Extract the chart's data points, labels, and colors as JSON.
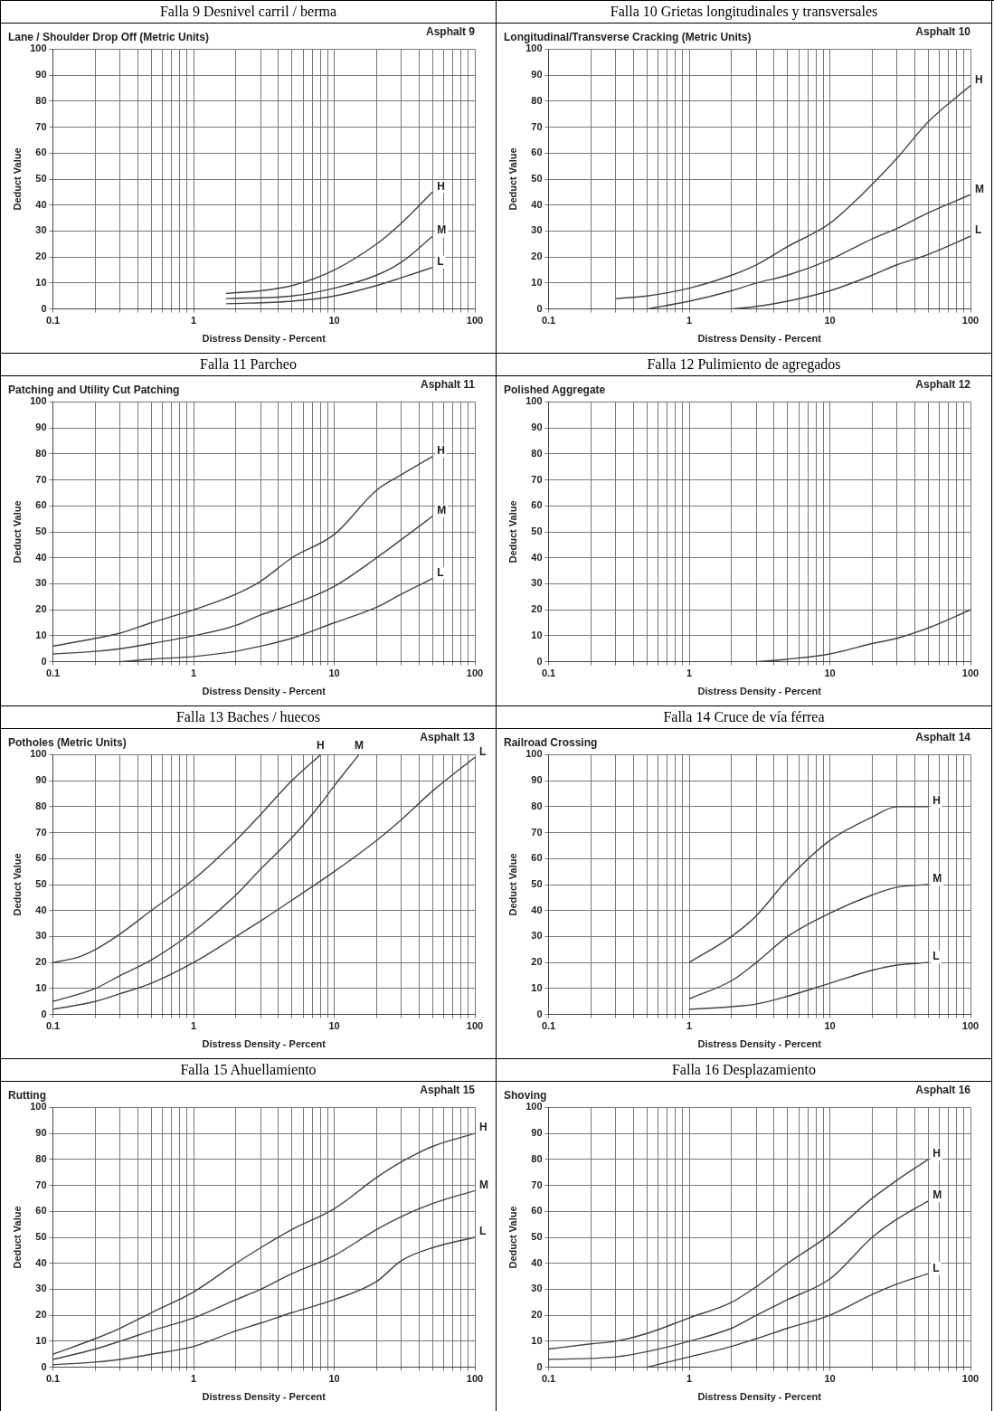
{
  "chart_data": [
    {
      "type": "line",
      "title": "Falla 9 Desnivel carril / berma",
      "subtitle": "Lane / Shoulder Drop Off (Metric Units)",
      "annotations": [
        "Asphalt 9"
      ],
      "xlabel": "Distress Density - Percent",
      "ylabel": "Deduct Value",
      "log": "x",
      "xlim": [
        0.1,
        100
      ],
      "xticks": [
        0.1,
        {
          "value": 0.2,
          "label": null
        },
        {
          "value": 0.3,
          "label": null
        },
        {
          "value": 0.4,
          "label": null
        },
        {
          "value": 0.5,
          "label": null
        },
        {
          "value": 0.6,
          "label": null
        },
        {
          "value": 0.7,
          "label": null
        },
        {
          "value": 0.8,
          "label": null
        },
        {
          "value": 0.9,
          "label": null
        },
        1,
        {
          "value": 2,
          "label": null
        },
        {
          "value": 3,
          "label": null
        },
        {
          "value": 4,
          "label": null
        },
        {
          "value": 5,
          "label": null
        },
        {
          "value": 6,
          "label": null
        },
        {
          "value": 7,
          "label": null
        },
        {
          "value": 8,
          "label": null
        },
        {
          "value": 9,
          "label": null
        },
        10,
        {
          "value": 20,
          "label": null
        },
        {
          "value": 30,
          "label": null
        },
        {
          "value": 40,
          "label": null
        },
        {
          "value": 50,
          "label": null
        },
        {
          "value": 60,
          "label": null
        },
        {
          "value": 70,
          "label": null
        },
        {
          "value": 80,
          "label": null
        },
        {
          "value": 90,
          "label": null
        },
        100
      ],
      "ylim": [
        0,
        100
      ],
      "yticks": [
        0,
        10,
        20,
        30,
        40,
        50,
        60,
        70,
        80,
        90,
        100
      ],
      "grid": true,
      "marker": "none",
      "series": [
        {
          "name": "H",
          "color": "#444444",
          "x": [
            1.7,
            3,
            5,
            10,
            20,
            30,
            50
          ],
          "values": [
            6,
            7,
            9,
            15,
            25,
            33,
            45
          ]
        },
        {
          "name": "M",
          "color": "#444444",
          "x": [
            1.7,
            5,
            10,
            20,
            30,
            50
          ],
          "values": [
            4,
            5,
            8,
            13,
            18,
            28
          ]
        },
        {
          "name": "L",
          "color": "#444444",
          "x": [
            1.7,
            5,
            10,
            20,
            30,
            50
          ],
          "values": [
            2,
            3,
            5,
            9,
            12,
            16
          ]
        }
      ]
    },
    {
      "type": "line",
      "title": "Falla 10 Grietas longitudinales y transversales",
      "subtitle": "Longitudinal/Transverse Cracking (Metric Units)",
      "annotations": [
        "Asphalt 10"
      ],
      "xlabel": "Distress Density - Percent",
      "ylabel": "Deduct Value",
      "log": "x",
      "xlim": [
        0.1,
        100
      ],
      "xticks": [
        0.1,
        {
          "value": 0.2,
          "label": null
        },
        {
          "value": 0.3,
          "label": null
        },
        {
          "value": 0.4,
          "label": null
        },
        {
          "value": 0.5,
          "label": null
        },
        {
          "value": 0.6,
          "label": null
        },
        {
          "value": 0.7,
          "label": null
        },
        {
          "value": 0.8,
          "label": null
        },
        {
          "value": 0.9,
          "label": null
        },
        1,
        {
          "value": 2,
          "label": null
        },
        {
          "value": 3,
          "label": null
        },
        {
          "value": 4,
          "label": null
        },
        {
          "value": 5,
          "label": null
        },
        {
          "value": 6,
          "label": null
        },
        {
          "value": 7,
          "label": null
        },
        {
          "value": 8,
          "label": null
        },
        {
          "value": 9,
          "label": null
        },
        10,
        {
          "value": 20,
          "label": null
        },
        {
          "value": 30,
          "label": null
        },
        {
          "value": 40,
          "label": null
        },
        {
          "value": 50,
          "label": null
        },
        {
          "value": 60,
          "label": null
        },
        {
          "value": 70,
          "label": null
        },
        {
          "value": 80,
          "label": null
        },
        {
          "value": 90,
          "label": null
        },
        100
      ],
      "ylim": [
        0,
        100
      ],
      "yticks": [
        0,
        10,
        20,
        30,
        40,
        50,
        60,
        70,
        80,
        90,
        100
      ],
      "grid": true,
      "marker": "none",
      "series": [
        {
          "name": "H",
          "color": "#444444",
          "x": [
            0.3,
            0.5,
            1,
            2,
            3,
            5,
            10,
            20,
            30,
            50,
            100
          ],
          "values": [
            4,
            5,
            8,
            13,
            17,
            24,
            33,
            48,
            58,
            72,
            86
          ]
        },
        {
          "name": "M",
          "color": "#444444",
          "x": [
            0.5,
            1,
            2,
            3,
            5,
            10,
            20,
            30,
            50,
            100
          ],
          "values": [
            0,
            3,
            7,
            10,
            13,
            19,
            27,
            31,
            37,
            44
          ]
        },
        {
          "name": "L",
          "color": "#444444",
          "x": [
            2,
            3,
            5,
            10,
            20,
            30,
            50,
            100
          ],
          "values": [
            0,
            1,
            3,
            7,
            13,
            17,
            21,
            28
          ]
        }
      ]
    },
    {
      "type": "line",
      "title": "Falla 11 Parcheo",
      "subtitle": "Patching and Utility Cut Patching",
      "annotations": [
        "Asphalt 11"
      ],
      "xlabel": "Distress Density - Percent",
      "ylabel": "Deduct Value",
      "log": "x",
      "xlim": [
        0.1,
        100
      ],
      "xticks": [
        0.1,
        {
          "value": 0.2,
          "label": null
        },
        {
          "value": 0.3,
          "label": null
        },
        {
          "value": 0.4,
          "label": null
        },
        {
          "value": 0.5,
          "label": null
        },
        {
          "value": 0.6,
          "label": null
        },
        {
          "value": 0.7,
          "label": null
        },
        {
          "value": 0.8,
          "label": null
        },
        {
          "value": 0.9,
          "label": null
        },
        1,
        {
          "value": 2,
          "label": null
        },
        {
          "value": 3,
          "label": null
        },
        {
          "value": 4,
          "label": null
        },
        {
          "value": 5,
          "label": null
        },
        {
          "value": 6,
          "label": null
        },
        {
          "value": 7,
          "label": null
        },
        {
          "value": 8,
          "label": null
        },
        {
          "value": 9,
          "label": null
        },
        10,
        {
          "value": 20,
          "label": null
        },
        {
          "value": 30,
          "label": null
        },
        {
          "value": 40,
          "label": null
        },
        {
          "value": 50,
          "label": null
        },
        {
          "value": 60,
          "label": null
        },
        {
          "value": 70,
          "label": null
        },
        {
          "value": 80,
          "label": null
        },
        {
          "value": 90,
          "label": null
        },
        100
      ],
      "ylim": [
        0,
        100
      ],
      "yticks": [
        0,
        10,
        20,
        30,
        40,
        50,
        60,
        70,
        80,
        90,
        100
      ],
      "grid": true,
      "marker": "none",
      "series": [
        {
          "name": "H",
          "color": "#444444",
          "x": [
            0.1,
            0.2,
            0.3,
            0.5,
            1,
            2,
            3,
            5,
            10,
            20,
            30,
            50
          ],
          "values": [
            6,
            9,
            11,
            15,
            20,
            26,
            31,
            40,
            49,
            66,
            72,
            79
          ]
        },
        {
          "name": "M",
          "color": "#444444",
          "x": [
            0.1,
            0.2,
            0.3,
            0.5,
            1,
            2,
            3,
            5,
            10,
            20,
            30,
            50
          ],
          "values": [
            3,
            4,
            5,
            7,
            10,
            14,
            18,
            22,
            29,
            40,
            47,
            56
          ]
        },
        {
          "name": "L",
          "color": "#444444",
          "x": [
            0.3,
            0.5,
            1,
            2,
            3,
            5,
            10,
            20,
            30,
            50
          ],
          "values": [
            0,
            1,
            2,
            4,
            6,
            9,
            15,
            21,
            26,
            32
          ]
        }
      ]
    },
    {
      "type": "line",
      "title": "Falla 12 Pulimiento de agregados",
      "subtitle": "Polished Aggregate",
      "annotations": [
        "Asphalt 12"
      ],
      "xlabel": "Distress Density - Percent",
      "ylabel": "Deduct Value",
      "log": "x",
      "xlim": [
        0.1,
        100
      ],
      "xticks": [
        0.1,
        {
          "value": 0.2,
          "label": null
        },
        {
          "value": 0.3,
          "label": null
        },
        {
          "value": 0.4,
          "label": null
        },
        {
          "value": 0.5,
          "label": null
        },
        {
          "value": 0.6,
          "label": null
        },
        {
          "value": 0.7,
          "label": null
        },
        {
          "value": 0.8,
          "label": null
        },
        {
          "value": 0.9,
          "label": null
        },
        1,
        {
          "value": 2,
          "label": null
        },
        {
          "value": 3,
          "label": null
        },
        {
          "value": 4,
          "label": null
        },
        {
          "value": 5,
          "label": null
        },
        {
          "value": 6,
          "label": null
        },
        {
          "value": 7,
          "label": null
        },
        {
          "value": 8,
          "label": null
        },
        {
          "value": 9,
          "label": null
        },
        10,
        {
          "value": 20,
          "label": null
        },
        {
          "value": 30,
          "label": null
        },
        {
          "value": 40,
          "label": null
        },
        {
          "value": 50,
          "label": null
        },
        {
          "value": 60,
          "label": null
        },
        {
          "value": 70,
          "label": null
        },
        {
          "value": 80,
          "label": null
        },
        {
          "value": 90,
          "label": null
        },
        100
      ],
      "ylim": [
        0,
        100
      ],
      "yticks": [
        0,
        10,
        20,
        30,
        40,
        50,
        60,
        70,
        80,
        90,
        100
      ],
      "grid": true,
      "marker": "none",
      "series": [
        {
          "color": "#444444",
          "x": [
            3,
            5,
            10,
            20,
            30,
            50,
            100
          ],
          "values": [
            0,
            1,
            3,
            7,
            9,
            13,
            20
          ]
        }
      ]
    },
    {
      "type": "line",
      "title": "Falla 13 Baches / huecos",
      "subtitle": "Potholes (Metric Units)",
      "annotations": [
        "Asphalt 13"
      ],
      "xlabel": "Distress Density - Percent",
      "ylabel": "Deduct Value",
      "log": "x",
      "xlim": [
        0.1,
        100
      ],
      "xticks": [
        0.1,
        {
          "value": 0.2,
          "label": null
        },
        {
          "value": 0.3,
          "label": null
        },
        {
          "value": 0.4,
          "label": null
        },
        {
          "value": 0.5,
          "label": null
        },
        {
          "value": 0.6,
          "label": null
        },
        {
          "value": 0.7,
          "label": null
        },
        {
          "value": 0.8,
          "label": null
        },
        {
          "value": 0.9,
          "label": null
        },
        1,
        {
          "value": 2,
          "label": null
        },
        {
          "value": 3,
          "label": null
        },
        {
          "value": 4,
          "label": null
        },
        {
          "value": 5,
          "label": null
        },
        {
          "value": 6,
          "label": null
        },
        {
          "value": 7,
          "label": null
        },
        {
          "value": 8,
          "label": null
        },
        {
          "value": 9,
          "label": null
        },
        10,
        {
          "value": 20,
          "label": null
        },
        {
          "value": 30,
          "label": null
        },
        {
          "value": 40,
          "label": null
        },
        {
          "value": 50,
          "label": null
        },
        {
          "value": 60,
          "label": null
        },
        {
          "value": 70,
          "label": null
        },
        {
          "value": 80,
          "label": null
        },
        {
          "value": 90,
          "label": null
        },
        100
      ],
      "ylim": [
        0,
        100
      ],
      "yticks": [
        0,
        10,
        20,
        30,
        40,
        50,
        60,
        70,
        80,
        90,
        100
      ],
      "grid": true,
      "marker": "none",
      "series": [
        {
          "name": "H",
          "color": "#444444",
          "x": [
            0.1,
            0.15,
            0.2,
            0.3,
            0.5,
            1,
            2,
            3,
            5,
            8
          ],
          "values": [
            20,
            22,
            25,
            31,
            40,
            52,
            67,
            77,
            90,
            100
          ]
        },
        {
          "name": "M",
          "color": "#444444",
          "x": [
            0.1,
            0.2,
            0.3,
            0.5,
            1,
            2,
            3,
            5,
            8,
            10,
            15
          ],
          "values": [
            5,
            10,
            15,
            21,
            32,
            46,
            56,
            68,
            81,
            88,
            100
          ]
        },
        {
          "name": "L",
          "color": "#444444",
          "x": [
            0.1,
            0.2,
            0.3,
            0.5,
            1,
            2,
            3,
            5,
            10,
            20,
            30,
            50,
            100
          ],
          "values": [
            2,
            5,
            8,
            12,
            20,
            30,
            36,
            44,
            55,
            67,
            75,
            86,
            99
          ]
        }
      ]
    },
    {
      "type": "line",
      "title": "Falla 14 Cruce de vía férrea",
      "subtitle": "Railroad Crossing",
      "annotations": [
        "Asphalt 14"
      ],
      "xlabel": "Distress Density - Percent",
      "ylabel": "Deduct Value",
      "log": "x",
      "xlim": [
        0.1,
        100
      ],
      "xticks": [
        0.1,
        {
          "value": 0.2,
          "label": null
        },
        {
          "value": 0.3,
          "label": null
        },
        {
          "value": 0.4,
          "label": null
        },
        {
          "value": 0.5,
          "label": null
        },
        {
          "value": 0.6,
          "label": null
        },
        {
          "value": 0.7,
          "label": null
        },
        {
          "value": 0.8,
          "label": null
        },
        {
          "value": 0.9,
          "label": null
        },
        1,
        {
          "value": 2,
          "label": null
        },
        {
          "value": 3,
          "label": null
        },
        {
          "value": 4,
          "label": null
        },
        {
          "value": 5,
          "label": null
        },
        {
          "value": 6,
          "label": null
        },
        {
          "value": 7,
          "label": null
        },
        {
          "value": 8,
          "label": null
        },
        {
          "value": 9,
          "label": null
        },
        10,
        {
          "value": 20,
          "label": null
        },
        {
          "value": 30,
          "label": null
        },
        {
          "value": 40,
          "label": null
        },
        {
          "value": 50,
          "label": null
        },
        {
          "value": 60,
          "label": null
        },
        {
          "value": 70,
          "label": null
        },
        {
          "value": 80,
          "label": null
        },
        {
          "value": 90,
          "label": null
        },
        100
      ],
      "ylim": [
        0,
        100
      ],
      "yticks": [
        0,
        10,
        20,
        30,
        40,
        50,
        60,
        70,
        80,
        90,
        100
      ],
      "grid": true,
      "marker": "none",
      "series": [
        {
          "name": "H",
          "color": "#444444",
          "x": [
            1,
            2,
            3,
            5,
            10,
            20,
            30,
            50
          ],
          "values": [
            20,
            30,
            38,
            52,
            67,
            76,
            80,
            80
          ]
        },
        {
          "name": "M",
          "color": "#444444",
          "x": [
            1,
            2,
            3,
            5,
            10,
            20,
            30,
            50
          ],
          "values": [
            6,
            13,
            20,
            30,
            39,
            46,
            49,
            50
          ]
        },
        {
          "name": "L",
          "color": "#444444",
          "x": [
            1,
            2,
            3,
            5,
            10,
            20,
            30,
            50
          ],
          "values": [
            2,
            3,
            4,
            7,
            12,
            17,
            19,
            20
          ]
        }
      ]
    },
    {
      "type": "line",
      "title": "Falla 15 Ahuellamiento",
      "subtitle": "Rutting",
      "annotations": [
        "Asphalt 15"
      ],
      "xlabel": "Distress Density - Percent",
      "ylabel": "Deduct Value",
      "log": "x",
      "xlim": [
        0.1,
        100
      ],
      "xticks": [
        0.1,
        {
          "value": 0.2,
          "label": null
        },
        {
          "value": 0.3,
          "label": null
        },
        {
          "value": 0.4,
          "label": null
        },
        {
          "value": 0.5,
          "label": null
        },
        {
          "value": 0.6,
          "label": null
        },
        {
          "value": 0.7,
          "label": null
        },
        {
          "value": 0.8,
          "label": null
        },
        {
          "value": 0.9,
          "label": null
        },
        1,
        {
          "value": 2,
          "label": null
        },
        {
          "value": 3,
          "label": null
        },
        {
          "value": 4,
          "label": null
        },
        {
          "value": 5,
          "label": null
        },
        {
          "value": 6,
          "label": null
        },
        {
          "value": 7,
          "label": null
        },
        {
          "value": 8,
          "label": null
        },
        {
          "value": 9,
          "label": null
        },
        10,
        {
          "value": 20,
          "label": null
        },
        {
          "value": 30,
          "label": null
        },
        {
          "value": 40,
          "label": null
        },
        {
          "value": 50,
          "label": null
        },
        {
          "value": 60,
          "label": null
        },
        {
          "value": 70,
          "label": null
        },
        {
          "value": 80,
          "label": null
        },
        {
          "value": 90,
          "label": null
        },
        100
      ],
      "ylim": [
        0,
        100
      ],
      "yticks": [
        0,
        10,
        20,
        30,
        40,
        50,
        60,
        70,
        80,
        90,
        100
      ],
      "grid": true,
      "marker": "none",
      "series": [
        {
          "name": "H",
          "color": "#444444",
          "x": [
            0.1,
            0.2,
            0.3,
            0.5,
            1,
            2,
            3,
            5,
            10,
            20,
            30,
            50,
            100
          ],
          "values": [
            5,
            11,
            15,
            21,
            29,
            40,
            46,
            53,
            61,
            73,
            79,
            85,
            90
          ]
        },
        {
          "name": "M",
          "color": "#444444",
          "x": [
            0.1,
            0.2,
            0.3,
            0.5,
            1,
            2,
            3,
            5,
            10,
            20,
            30,
            50,
            100
          ],
          "values": [
            3,
            7,
            10,
            14,
            19,
            26,
            30,
            36,
            43,
            53,
            58,
            63,
            68
          ]
        },
        {
          "name": "L",
          "color": "#444444",
          "x": [
            0.1,
            0.2,
            0.3,
            0.5,
            1,
            2,
            3,
            5,
            10,
            20,
            30,
            50,
            100
          ],
          "values": [
            1,
            2,
            3,
            5,
            8,
            14,
            17,
            21,
            26,
            33,
            41,
            46,
            50
          ]
        }
      ]
    },
    {
      "type": "line",
      "title": "Falla 16 Desplazamiento",
      "subtitle": "Shoving",
      "annotations": [
        "Asphalt 16"
      ],
      "xlabel": "Distress Density - Percent",
      "ylabel": "Deduct Value",
      "log": "x",
      "xlim": [
        0.1,
        100
      ],
      "xticks": [
        0.1,
        {
          "value": 0.2,
          "label": null
        },
        {
          "value": 0.3,
          "label": null
        },
        {
          "value": 0.4,
          "label": null
        },
        {
          "value": 0.5,
          "label": null
        },
        {
          "value": 0.6,
          "label": null
        },
        {
          "value": 0.7,
          "label": null
        },
        {
          "value": 0.8,
          "label": null
        },
        {
          "value": 0.9,
          "label": null
        },
        1,
        {
          "value": 2,
          "label": null
        },
        {
          "value": 3,
          "label": null
        },
        {
          "value": 4,
          "label": null
        },
        {
          "value": 5,
          "label": null
        },
        {
          "value": 6,
          "label": null
        },
        {
          "value": 7,
          "label": null
        },
        {
          "value": 8,
          "label": null
        },
        {
          "value": 9,
          "label": null
        },
        10,
        {
          "value": 20,
          "label": null
        },
        {
          "value": 30,
          "label": null
        },
        {
          "value": 40,
          "label": null
        },
        {
          "value": 50,
          "label": null
        },
        {
          "value": 60,
          "label": null
        },
        {
          "value": 70,
          "label": null
        },
        {
          "value": 80,
          "label": null
        },
        {
          "value": 90,
          "label": null
        },
        100
      ],
      "ylim": [
        0,
        100
      ],
      "yticks": [
        0,
        10,
        20,
        30,
        40,
        50,
        60,
        70,
        80,
        90,
        100
      ],
      "grid": true,
      "marker": "none",
      "series": [
        {
          "name": "H",
          "color": "#444444",
          "x": [
            0.1,
            0.2,
            0.3,
            0.5,
            1,
            2,
            3,
            5,
            10,
            20,
            30,
            50
          ],
          "values": [
            7,
            9,
            10,
            13,
            19,
            25,
            31,
            40,
            51,
            65,
            72,
            80
          ]
        },
        {
          "name": "M",
          "color": "#444444",
          "x": [
            0.1,
            0.3,
            0.5,
            1,
            2,
            3,
            5,
            10,
            20,
            30,
            50
          ],
          "values": [
            3,
            4,
            6,
            10,
            15,
            20,
            26,
            34,
            50,
            57,
            64
          ]
        },
        {
          "name": "L",
          "color": "#444444",
          "x": [
            0.5,
            1,
            2,
            3,
            5,
            10,
            20,
            30,
            50
          ],
          "values": [
            0,
            4,
            8,
            11,
            15,
            20,
            28,
            32,
            36
          ]
        }
      ]
    }
  ]
}
